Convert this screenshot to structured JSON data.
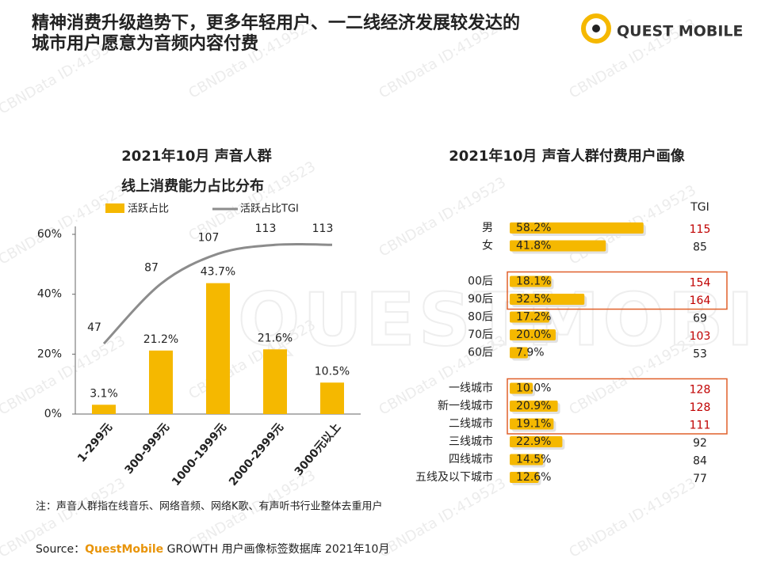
{
  "header": {
    "title_lines": [
      "精神消费升级趋势下，更多年轻用户、一二线经济发展较发达的",
      "城市用户愿意为音频内容付费"
    ],
    "logo": "QUEST MOBILE"
  },
  "watermark": "CBNData ID:419523",
  "watermark_logo": "QUESTMOBILE",
  "chart_data": [
    {
      "type": "bar_line",
      "title": "2021年10月 声音人群",
      "subtitle": "线上消费能力占比分布",
      "categories": [
        "1-299元",
        "300-999元",
        "1000-1999元",
        "2000-2999元",
        "3000元以上"
      ],
      "series": [
        {
          "name": "活跃占比",
          "color": "#f5b800",
          "values": [
            3.1,
            21.2,
            43.7,
            21.6,
            10.5
          ],
          "value_labels": [
            "3.1%",
            "21.2%",
            "43.7%",
            "21.6%",
            "10.5%"
          ]
        },
        {
          "name": "活跃占比TGI",
          "color": "#8c8c8c",
          "axis": "y2",
          "values": [
            47,
            87,
            107,
            113,
            113
          ]
        }
      ],
      "ylim": [
        0,
        60
      ],
      "yticks": [
        {
          "value": 0,
          "label": "0%"
        },
        {
          "value": 20,
          "label": "20%"
        },
        {
          "value": 40,
          "label": "40%"
        },
        {
          "value": 60,
          "label": "60%"
        }
      ],
      "y2lim": [
        0,
        120
      ]
    },
    {
      "type": "hbar_groups",
      "title": "2021年10月 声音人群付费用户画像",
      "tgi_header": "TGI",
      "color": "#f5b800",
      "xlim": [
        0,
        100
      ],
      "tgi_high_color": "#c00000",
      "groups": [
        {
          "categories": [
            "男",
            "女"
          ],
          "values": [
            58.2,
            41.8
          ],
          "value_labels": [
            "58.2%",
            "41.8%"
          ],
          "tgi": [
            115,
            85
          ]
        },
        {
          "categories": [
            "00后",
            "90后",
            "80后",
            "70后",
            "60后"
          ],
          "values": [
            18.1,
            32.5,
            17.2,
            20.0,
            7.9
          ],
          "value_labels": [
            "18.1%",
            "32.5%",
            "17.2%",
            "20.0%",
            "7.9%"
          ],
          "tgi": [
            154,
            164,
            69,
            103,
            53
          ]
        },
        {
          "categories": [
            "一线城市",
            "新一线城市",
            "二线城市",
            "三线城市",
            "四线城市",
            "五线及以下城市"
          ],
          "values": [
            10.0,
            20.9,
            19.1,
            22.9,
            14.5,
            12.6
          ],
          "value_labels": [
            "10.0%",
            "20.9%",
            "19.1%",
            "22.9%",
            "14.5%",
            "12.6%"
          ],
          "tgi": [
            128,
            128,
            111,
            92,
            84,
            77
          ]
        }
      ]
    }
  ],
  "footer": {
    "note": "注：声音人群指在线音乐、网络音频、网络K歌、有声听书行业整体去重用户",
    "source_prefix": "Source：",
    "source_brand": "QuestMobile",
    "source_rest": " GROWTH 用户画像标签数据库 2021年10月"
  }
}
